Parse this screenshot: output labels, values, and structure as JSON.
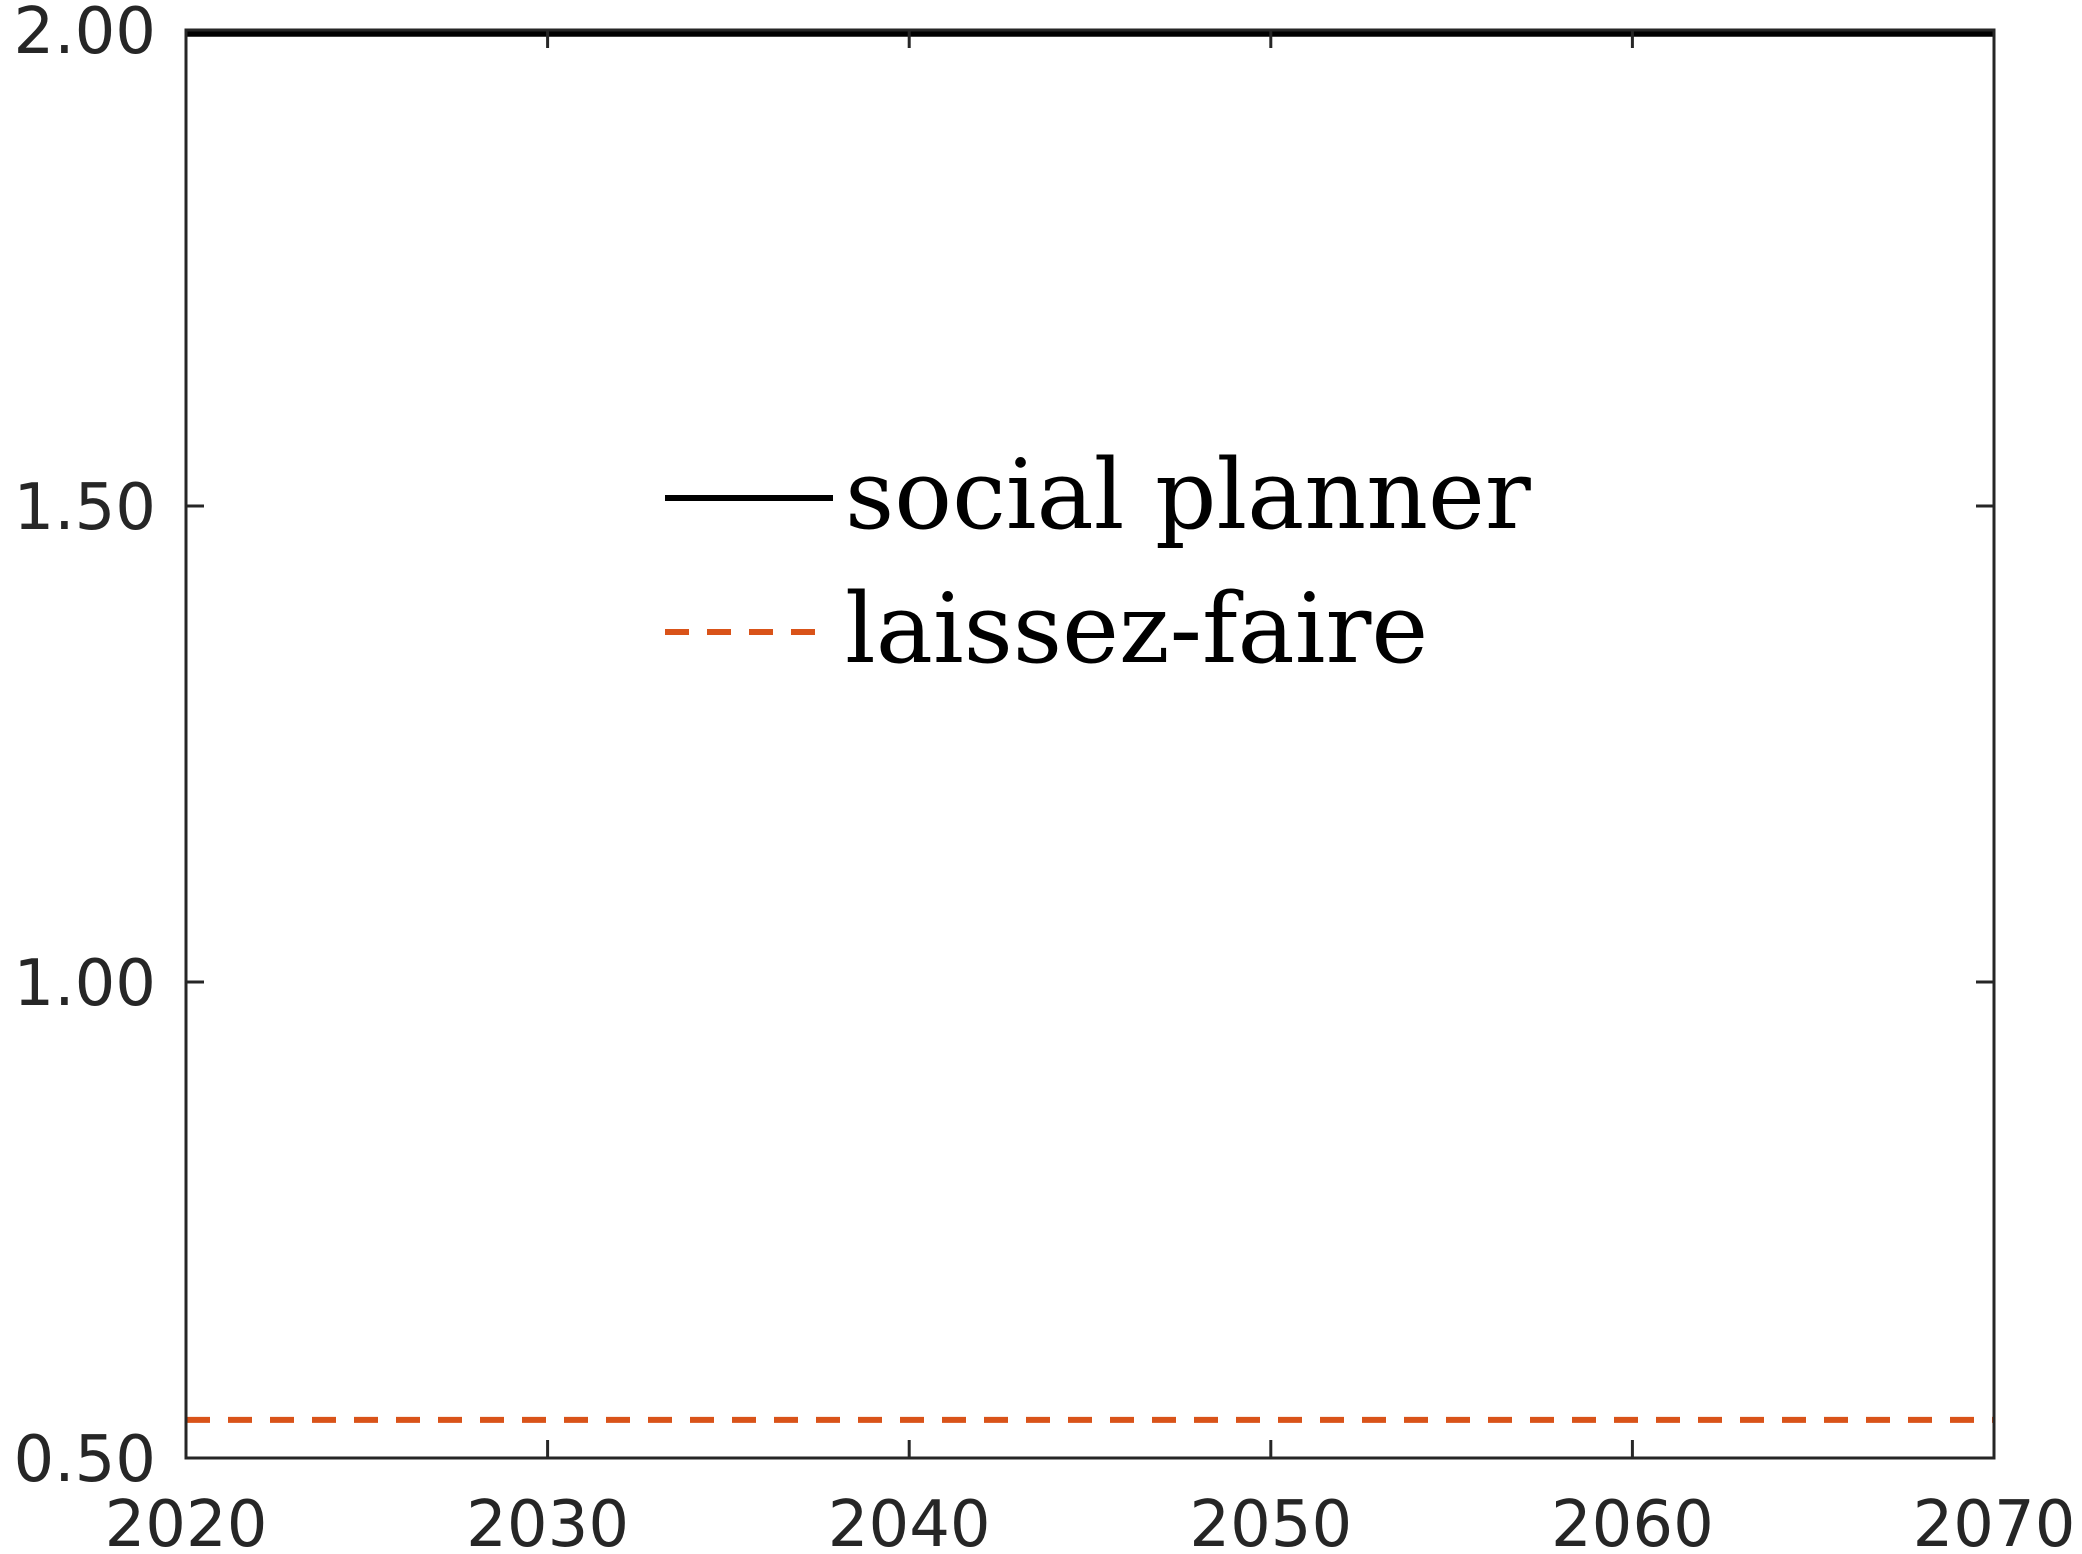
{
  "chart_data": {
    "type": "line",
    "title": "",
    "xlabel": "",
    "ylabel": "",
    "xlim": [
      2020,
      2070
    ],
    "ylim": [
      0.5,
      2.0
    ],
    "xticks": [
      2020,
      2030,
      2040,
      2050,
      2060,
      2070
    ],
    "yticks": [
      0.5,
      1.0,
      1.5,
      2.0
    ],
    "xtick_labels": [
      "2020",
      "2030",
      "2040",
      "2050",
      "2060",
      "2070"
    ],
    "ytick_labels": [
      "0.50",
      "1.00",
      "1.50",
      "2.00"
    ],
    "grid": false,
    "legend_position": "upper-center",
    "series": [
      {
        "name": "social planner",
        "color": "#000000",
        "dash": "solid",
        "x": [
          2020,
          2070
        ],
        "y": [
          1.996,
          1.996
        ]
      },
      {
        "name": "laissez-faire",
        "color": "#D95319",
        "dash": "dashed",
        "x": [
          2020,
          2070
        ],
        "y": [
          0.54,
          0.54
        ]
      }
    ]
  }
}
